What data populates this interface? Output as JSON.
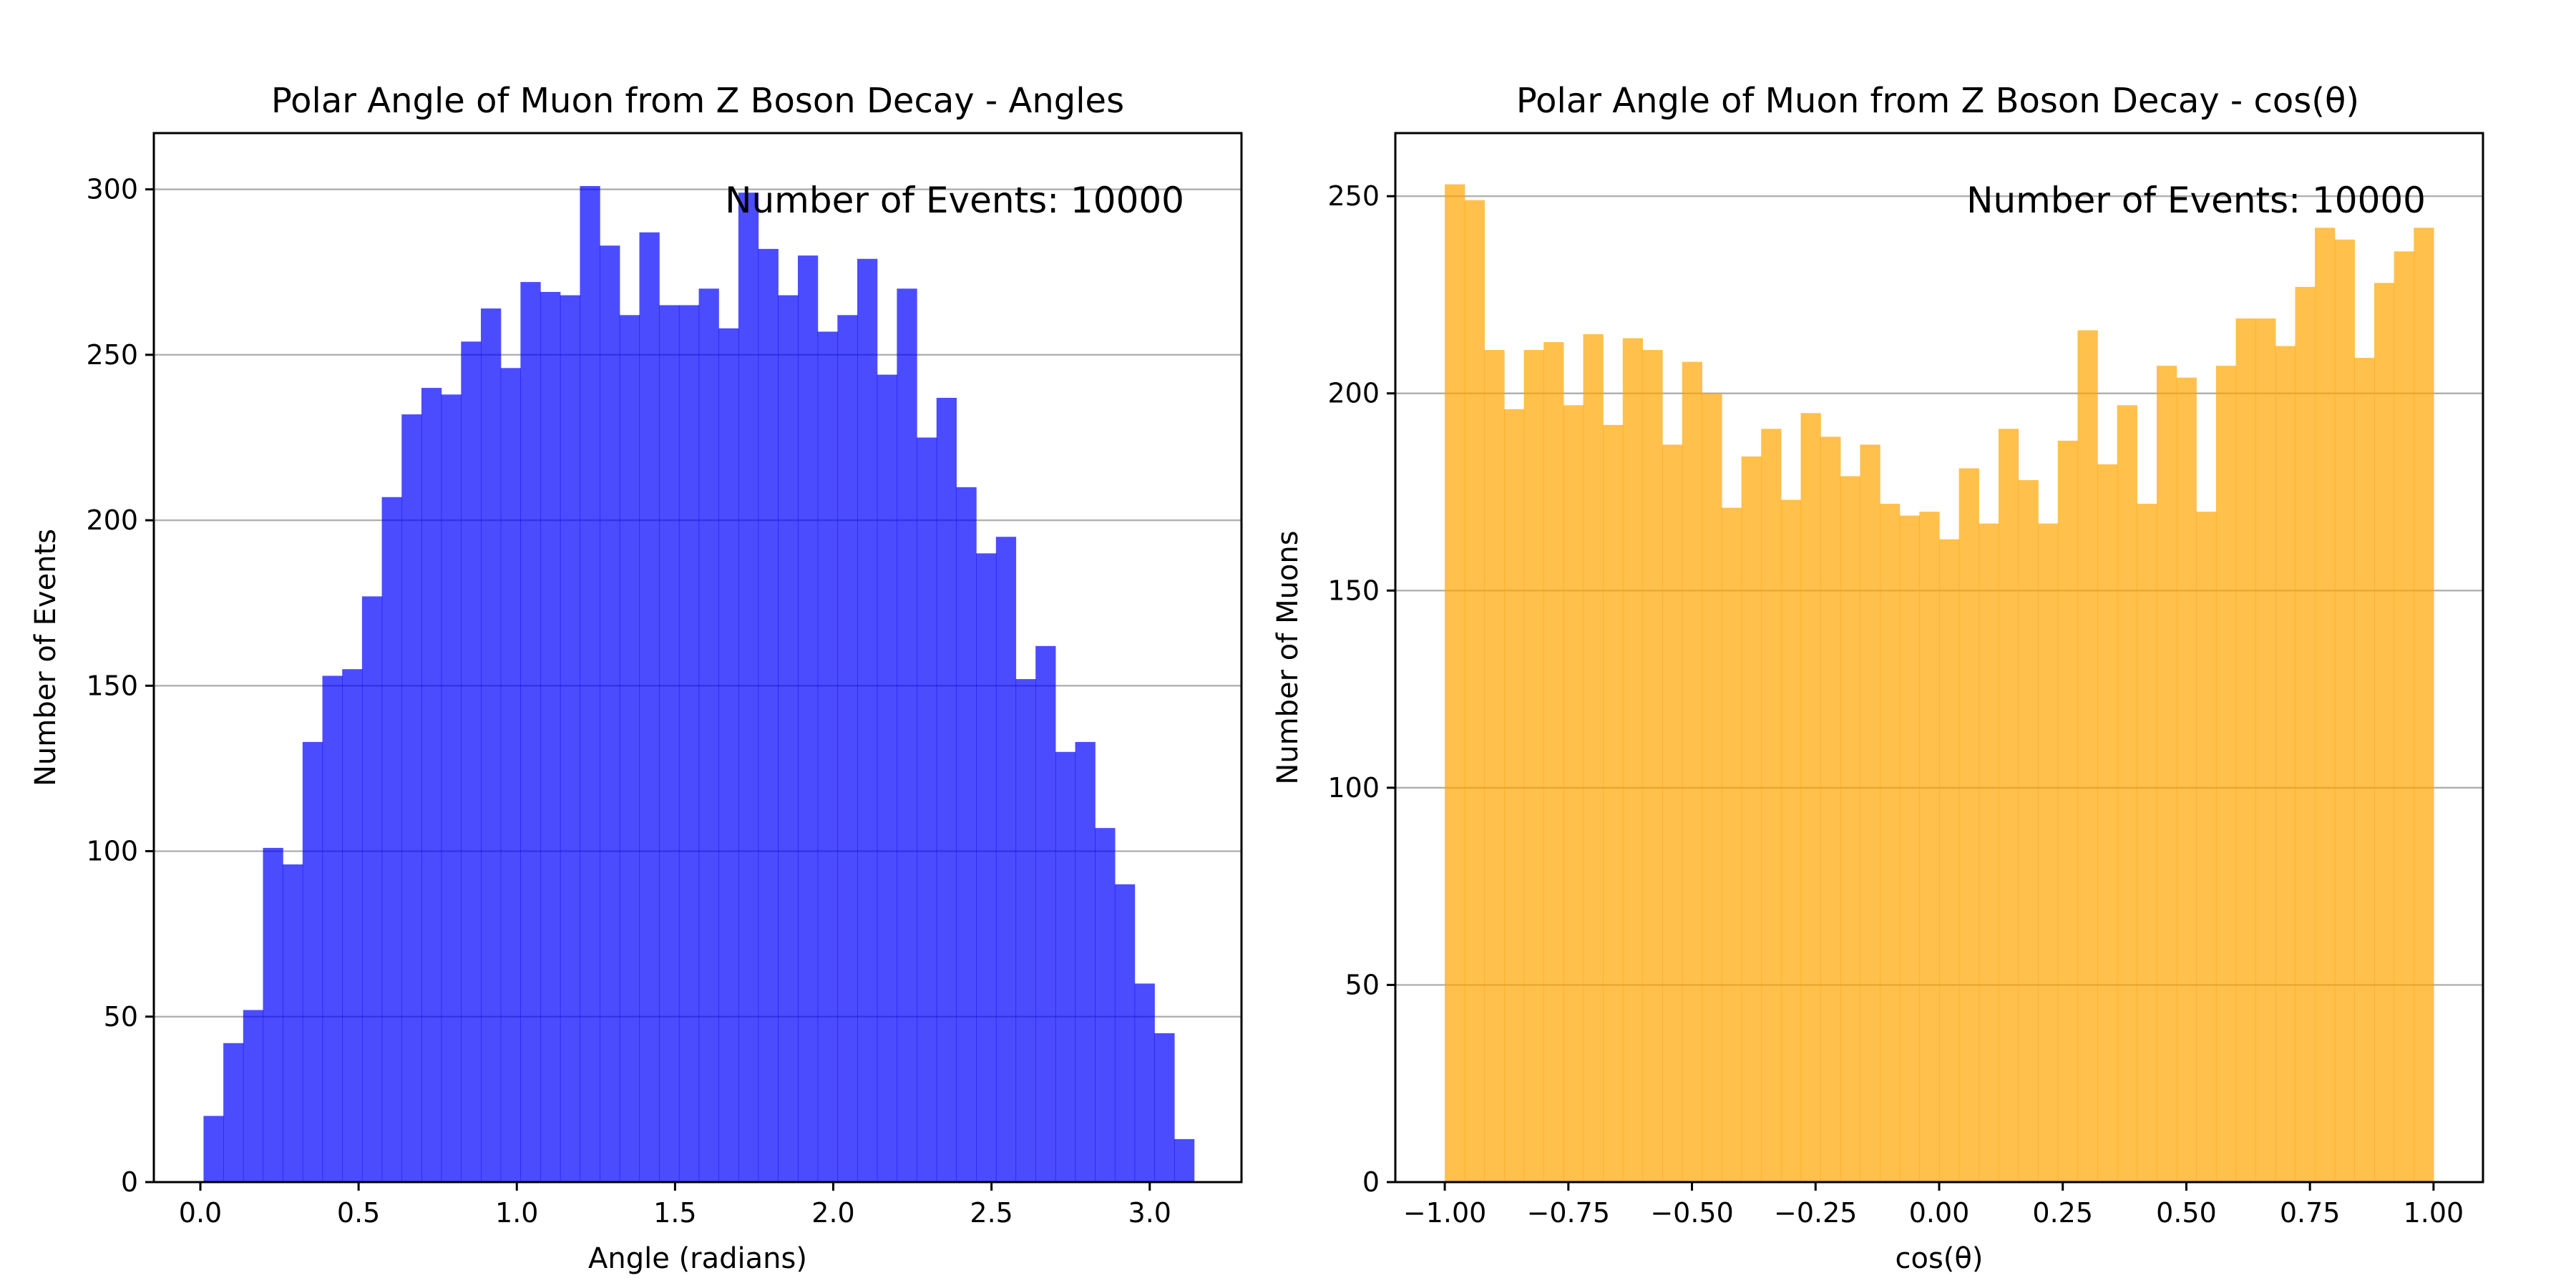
{
  "chart_data": [
    {
      "type": "bar",
      "title": "Polar Angle of Muon from Z Boson Decay - Angles",
      "xlabel": "Angle (radians)",
      "ylabel": "Number of Events",
      "annotation": "Number of Events: 10000",
      "color": "#0000ff",
      "opacity": 0.7,
      "grid": "y",
      "xlim": [
        -0.147,
        3.29
      ],
      "ylim": [
        0,
        317
      ],
      "xticks": [
        0.0,
        0.5,
        1.0,
        1.5,
        2.0,
        2.5,
        3.0
      ],
      "xtick_labels": [
        "0.0",
        "0.5",
        "1.0",
        "1.5",
        "2.0",
        "2.5",
        "3.0"
      ],
      "yticks": [
        0,
        50,
        100,
        150,
        200,
        250,
        300
      ],
      "ytick_labels": [
        "0",
        "50",
        "100",
        "150",
        "200",
        "250",
        "300"
      ],
      "bin_range": [
        0.01,
        3.14
      ],
      "values": [
        20,
        42,
        52,
        101,
        96,
        133,
        153,
        155,
        177,
        207,
        232,
        240,
        238,
        254,
        264,
        246,
        272,
        269,
        268,
        301,
        283,
        262,
        287,
        265,
        265,
        270,
        258,
        299,
        282,
        268,
        280,
        257,
        262,
        279,
        244,
        270,
        225,
        237,
        210,
        190,
        195,
        152,
        162,
        130,
        133,
        107,
        90,
        60,
        45,
        13
      ]
    },
    {
      "type": "bar",
      "title": "Polar Angle of Muon from Z Boson Decay - cos(θ)",
      "xlabel": "cos(θ)",
      "ylabel": "Number of Muons",
      "annotation": "Number of Events: 10000",
      "color": "#ffa500",
      "opacity": 0.7,
      "grid": "y",
      "xlim": [
        -1.1,
        1.1
      ],
      "ylim": [
        0,
        266
      ],
      "xticks": [
        -1.0,
        -0.75,
        -0.5,
        -0.25,
        0.0,
        0.25,
        0.5,
        0.75,
        1.0
      ],
      "xtick_labels": [
        "−1.00",
        "−0.75",
        "−0.50",
        "−0.25",
        "0.00",
        "0.25",
        "0.50",
        "0.75",
        "1.00"
      ],
      "yticks": [
        0,
        50,
        100,
        150,
        200,
        250
      ],
      "ytick_labels": [
        "0",
        "50",
        "100",
        "150",
        "200",
        "250"
      ],
      "bin_range": [
        -1.0,
        1.0
      ],
      "values": [
        253,
        249,
        211,
        196,
        211,
        213,
        197,
        215,
        192,
        214,
        211,
        187,
        208,
        200,
        171,
        184,
        191,
        173,
        195,
        189,
        179,
        187,
        172,
        169,
        170,
        163,
        181,
        167,
        191,
        178,
        167,
        188,
        216,
        182,
        197,
        172,
        207,
        204,
        170,
        207,
        219,
        219,
        212,
        227,
        242,
        239,
        209,
        228,
        236,
        242
      ]
    }
  ]
}
